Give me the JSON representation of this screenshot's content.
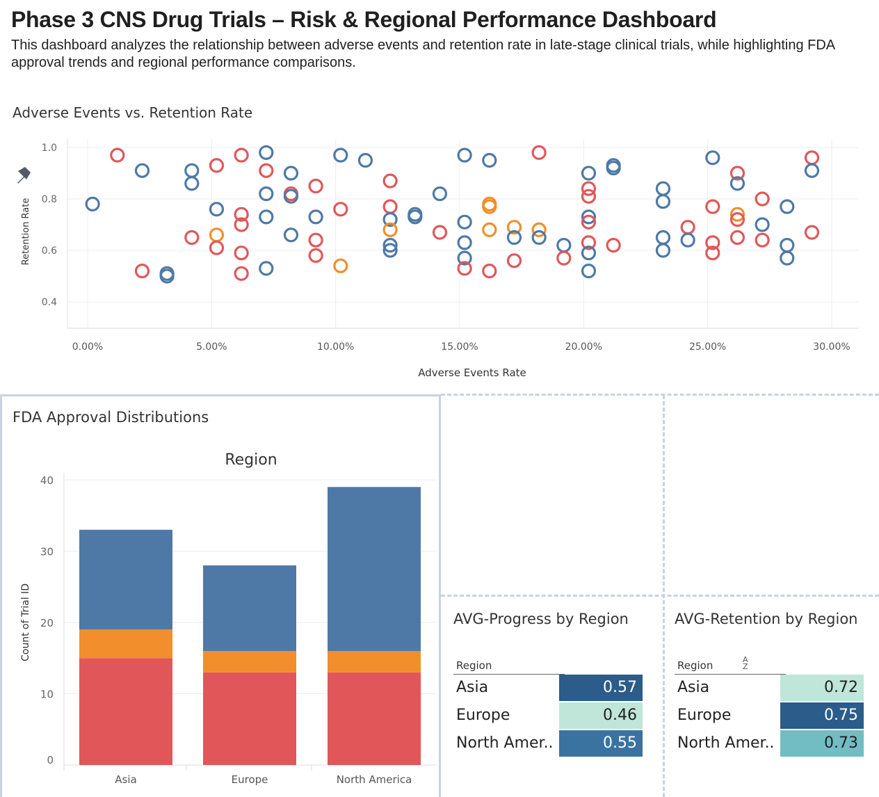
{
  "header": {
    "title": "Phase 3 CNS Drug Trials – Risk & Regional Performance Dashboard",
    "subtitle": "This dashboard analyzes the relationship between adverse events and retention rate in late-stage clinical trials, while highlighting FDA approval trends and regional performance comparisons."
  },
  "scatter": {
    "title": "Adverse Events vs. Retention Rate",
    "pin_icon": "pin-icon",
    "colors": {
      "blue": "#4e79a7",
      "red": "#e15759",
      "orange": "#f28e2b"
    },
    "chart_data": {
      "type": "scatter",
      "xlabel": "Adverse Events Rate",
      "ylabel": "Retention Rate",
      "xlim": [
        0,
        0.3
      ],
      "ylim": [
        0.4,
        1.0
      ],
      "x_ticks": [
        "0.00%",
        "5.00%",
        "10.00%",
        "15.00%",
        "20.00%",
        "25.00%",
        "30.00%"
      ],
      "y_ticks": [
        "0.4",
        "0.6",
        "0.8",
        "1.0"
      ],
      "grid": true,
      "points": [
        {
          "x": 0.002,
          "y": 0.78,
          "c": "blue"
        },
        {
          "x": 0.012,
          "y": 0.97,
          "c": "red"
        },
        {
          "x": 0.022,
          "y": 0.52,
          "c": "red"
        },
        {
          "x": 0.022,
          "y": 0.91,
          "c": "blue"
        },
        {
          "x": 0.032,
          "y": 0.51,
          "c": "blue"
        },
        {
          "x": 0.032,
          "y": 0.5,
          "c": "blue"
        },
        {
          "x": 0.042,
          "y": 0.91,
          "c": "blue"
        },
        {
          "x": 0.042,
          "y": 0.86,
          "c": "blue"
        },
        {
          "x": 0.042,
          "y": 0.65,
          "c": "red"
        },
        {
          "x": 0.052,
          "y": 0.93,
          "c": "red"
        },
        {
          "x": 0.052,
          "y": 0.76,
          "c": "blue"
        },
        {
          "x": 0.052,
          "y": 0.66,
          "c": "orange"
        },
        {
          "x": 0.052,
          "y": 0.61,
          "c": "red"
        },
        {
          "x": 0.062,
          "y": 0.97,
          "c": "red"
        },
        {
          "x": 0.062,
          "y": 0.74,
          "c": "red"
        },
        {
          "x": 0.062,
          "y": 0.7,
          "c": "red"
        },
        {
          "x": 0.062,
          "y": 0.59,
          "c": "red"
        },
        {
          "x": 0.062,
          "y": 0.51,
          "c": "red"
        },
        {
          "x": 0.072,
          "y": 0.98,
          "c": "blue"
        },
        {
          "x": 0.072,
          "y": 0.91,
          "c": "red"
        },
        {
          "x": 0.072,
          "y": 0.82,
          "c": "blue"
        },
        {
          "x": 0.072,
          "y": 0.73,
          "c": "blue"
        },
        {
          "x": 0.072,
          "y": 0.53,
          "c": "blue"
        },
        {
          "x": 0.082,
          "y": 0.9,
          "c": "blue"
        },
        {
          "x": 0.082,
          "y": 0.82,
          "c": "red"
        },
        {
          "x": 0.082,
          "y": 0.81,
          "c": "blue"
        },
        {
          "x": 0.082,
          "y": 0.66,
          "c": "blue"
        },
        {
          "x": 0.092,
          "y": 0.85,
          "c": "red"
        },
        {
          "x": 0.092,
          "y": 0.73,
          "c": "blue"
        },
        {
          "x": 0.092,
          "y": 0.64,
          "c": "red"
        },
        {
          "x": 0.092,
          "y": 0.58,
          "c": "red"
        },
        {
          "x": 0.102,
          "y": 0.97,
          "c": "blue"
        },
        {
          "x": 0.102,
          "y": 0.76,
          "c": "red"
        },
        {
          "x": 0.102,
          "y": 0.54,
          "c": "orange"
        },
        {
          "x": 0.112,
          "y": 0.95,
          "c": "blue"
        },
        {
          "x": 0.122,
          "y": 0.87,
          "c": "red"
        },
        {
          "x": 0.122,
          "y": 0.77,
          "c": "red"
        },
        {
          "x": 0.122,
          "y": 0.72,
          "c": "blue"
        },
        {
          "x": 0.122,
          "y": 0.68,
          "c": "orange"
        },
        {
          "x": 0.122,
          "y": 0.62,
          "c": "blue"
        },
        {
          "x": 0.122,
          "y": 0.6,
          "c": "blue"
        },
        {
          "x": 0.132,
          "y": 0.74,
          "c": "blue"
        },
        {
          "x": 0.132,
          "y": 0.73,
          "c": "blue"
        },
        {
          "x": 0.142,
          "y": 0.82,
          "c": "blue"
        },
        {
          "x": 0.142,
          "y": 0.67,
          "c": "red"
        },
        {
          "x": 0.152,
          "y": 0.97,
          "c": "blue"
        },
        {
          "x": 0.152,
          "y": 0.71,
          "c": "blue"
        },
        {
          "x": 0.152,
          "y": 0.63,
          "c": "blue"
        },
        {
          "x": 0.152,
          "y": 0.57,
          "c": "blue"
        },
        {
          "x": 0.152,
          "y": 0.53,
          "c": "red"
        },
        {
          "x": 0.162,
          "y": 0.95,
          "c": "blue"
        },
        {
          "x": 0.162,
          "y": 0.78,
          "c": "orange"
        },
        {
          "x": 0.162,
          "y": 0.77,
          "c": "orange"
        },
        {
          "x": 0.162,
          "y": 0.68,
          "c": "orange"
        },
        {
          "x": 0.162,
          "y": 0.52,
          "c": "red"
        },
        {
          "x": 0.172,
          "y": 0.69,
          "c": "orange"
        },
        {
          "x": 0.172,
          "y": 0.65,
          "c": "blue"
        },
        {
          "x": 0.172,
          "y": 0.56,
          "c": "red"
        },
        {
          "x": 0.182,
          "y": 0.98,
          "c": "red"
        },
        {
          "x": 0.182,
          "y": 0.68,
          "c": "orange"
        },
        {
          "x": 0.182,
          "y": 0.65,
          "c": "blue"
        },
        {
          "x": 0.192,
          "y": 0.62,
          "c": "blue"
        },
        {
          "x": 0.192,
          "y": 0.57,
          "c": "red"
        },
        {
          "x": 0.202,
          "y": 0.9,
          "c": "blue"
        },
        {
          "x": 0.202,
          "y": 0.84,
          "c": "red"
        },
        {
          "x": 0.202,
          "y": 0.81,
          "c": "red"
        },
        {
          "x": 0.202,
          "y": 0.73,
          "c": "blue"
        },
        {
          "x": 0.202,
          "y": 0.71,
          "c": "red"
        },
        {
          "x": 0.202,
          "y": 0.63,
          "c": "red"
        },
        {
          "x": 0.202,
          "y": 0.59,
          "c": "blue"
        },
        {
          "x": 0.202,
          "y": 0.52,
          "c": "blue"
        },
        {
          "x": 0.212,
          "y": 0.93,
          "c": "blue"
        },
        {
          "x": 0.212,
          "y": 0.92,
          "c": "blue"
        },
        {
          "x": 0.212,
          "y": 0.62,
          "c": "red"
        },
        {
          "x": 0.232,
          "y": 0.84,
          "c": "blue"
        },
        {
          "x": 0.232,
          "y": 0.79,
          "c": "blue"
        },
        {
          "x": 0.232,
          "y": 0.65,
          "c": "blue"
        },
        {
          "x": 0.232,
          "y": 0.6,
          "c": "blue"
        },
        {
          "x": 0.242,
          "y": 0.69,
          "c": "red"
        },
        {
          "x": 0.242,
          "y": 0.64,
          "c": "blue"
        },
        {
          "x": 0.252,
          "y": 0.96,
          "c": "blue"
        },
        {
          "x": 0.252,
          "y": 0.77,
          "c": "red"
        },
        {
          "x": 0.252,
          "y": 0.63,
          "c": "red"
        },
        {
          "x": 0.252,
          "y": 0.59,
          "c": "red"
        },
        {
          "x": 0.262,
          "y": 0.9,
          "c": "red"
        },
        {
          "x": 0.262,
          "y": 0.86,
          "c": "blue"
        },
        {
          "x": 0.262,
          "y": 0.74,
          "c": "orange"
        },
        {
          "x": 0.262,
          "y": 0.72,
          "c": "red"
        },
        {
          "x": 0.262,
          "y": 0.65,
          "c": "red"
        },
        {
          "x": 0.272,
          "y": 0.8,
          "c": "red"
        },
        {
          "x": 0.272,
          "y": 0.7,
          "c": "blue"
        },
        {
          "x": 0.272,
          "y": 0.64,
          "c": "red"
        },
        {
          "x": 0.282,
          "y": 0.77,
          "c": "blue"
        },
        {
          "x": 0.282,
          "y": 0.62,
          "c": "blue"
        },
        {
          "x": 0.282,
          "y": 0.57,
          "c": "blue"
        },
        {
          "x": 0.292,
          "y": 0.96,
          "c": "red"
        },
        {
          "x": 0.292,
          "y": 0.91,
          "c": "blue"
        },
        {
          "x": 0.292,
          "y": 0.67,
          "c": "red"
        }
      ]
    }
  },
  "fda": {
    "title": "FDA Approval Distributions",
    "colors": {
      "blue": "#4e79a7",
      "orange": "#f28e2b",
      "red": "#e15759"
    },
    "chart_data": {
      "type": "bar",
      "stacked": true,
      "title": "Region",
      "ylabel": "Count of Trial ID",
      "categories": [
        "Asia",
        "Europe",
        "North America"
      ],
      "ylim": [
        0,
        40
      ],
      "y_ticks": [
        "0",
        "10",
        "20",
        "30",
        "40"
      ],
      "series": [
        {
          "color": "red",
          "values": [
            15,
            13,
            13
          ]
        },
        {
          "color": "orange",
          "values": [
            4,
            3,
            3
          ]
        },
        {
          "color": "blue",
          "values": [
            14,
            12,
            23
          ]
        }
      ]
    }
  },
  "progress": {
    "title": "AVG-Progress by Region",
    "header": "Region",
    "rows": [
      {
        "label": "Asia",
        "value": "0.57",
        "bg": "#2b5c8a",
        "fg": "#ffffff"
      },
      {
        "label": "Europe",
        "value": "0.46",
        "bg": "#bfe6d8",
        "fg": "#1f1f1f"
      },
      {
        "label": "North Amer..",
        "value": "0.55",
        "bg": "#3a73a0",
        "fg": "#ffffff"
      }
    ]
  },
  "retention": {
    "title": "AVG-Retention by Region",
    "header": "Region",
    "sort_icon": "sort-az-icon",
    "rows": [
      {
        "label": "Asia",
        "value": "0.72",
        "bg": "#bfe6d8",
        "fg": "#1f1f1f"
      },
      {
        "label": "Europe",
        "value": "0.75",
        "bg": "#2b5c8a",
        "fg": "#ffffff"
      },
      {
        "label": "North Amer..",
        "value": "0.73",
        "bg": "#72bcc4",
        "fg": "#1f1f1f"
      }
    ]
  }
}
